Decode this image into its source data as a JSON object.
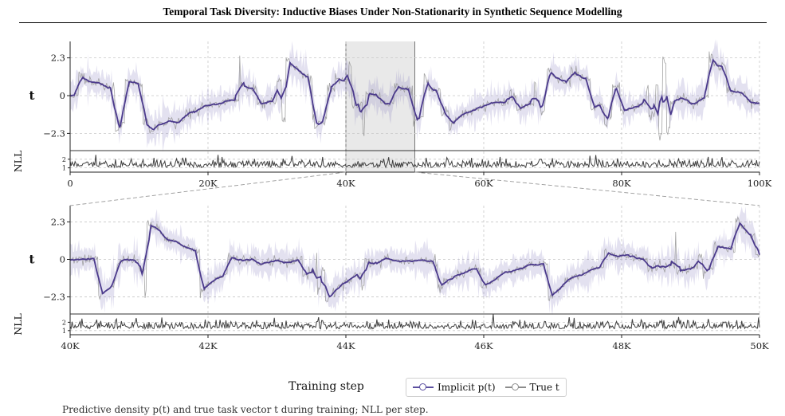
{
  "header": {
    "title": "Temporal Task Diversity: Inductive Biases Under Non-Stationarity in Synthetic Sequence Modelling"
  },
  "colors": {
    "implicit": "#4b3a8c",
    "true": "#9a9a9a",
    "nll": "#404040",
    "highlight": "#e9e9e9"
  },
  "xlabel": "Training step",
  "legend": [
    {
      "label": "Implicit p(t)",
      "color": "#5b4fa0",
      "marker": "circle"
    },
    {
      "label": "True t",
      "color": "#8c8c8c",
      "marker": "circle"
    }
  ],
  "caption": "Predictive density p(t) and true task vector t during training; NLL per step.",
  "chart_data": [
    {
      "type": "line",
      "title": "",
      "ylabel": "t",
      "xlim": [
        0,
        100000
      ],
      "ylim": [
        -3.3,
        3.3
      ],
      "yticks": [
        -2.3,
        0,
        2.3
      ],
      "ytick_labels": [
        "−2.3",
        "0",
        "2.3"
      ],
      "xticks": [
        0,
        20000,
        40000,
        60000,
        80000,
        100000
      ],
      "xtick_labels": [
        "0",
        "20K",
        "40K",
        "60K",
        "80K",
        "100K"
      ],
      "highlight_range": [
        40000,
        50000
      ],
      "grid": true,
      "series": [
        {
          "name": "Implicit p(t)"
        },
        {
          "name": "True t"
        }
      ],
      "nll_panel": {
        "ylabel": "NLL",
        "yticks": [
          1,
          2
        ],
        "ytick_labels": [
          "1",
          "2"
        ],
        "ylim": [
          0.5,
          3.0
        ]
      }
    },
    {
      "type": "line",
      "title": "",
      "ylabel": "t",
      "xlim": [
        40000,
        50000
      ],
      "ylim": [
        -3.3,
        3.3
      ],
      "yticks": [
        -2.3,
        0,
        2.3
      ],
      "ytick_labels": [
        "−2.3",
        "0",
        "2.3"
      ],
      "xticks": [
        40000,
        42000,
        44000,
        46000,
        48000,
        50000
      ],
      "xtick_labels": [
        "40K",
        "42K",
        "44K",
        "46K",
        "48K",
        "50K"
      ],
      "grid": true,
      "series": [
        {
          "name": "Implicit p(t)"
        },
        {
          "name": "True t"
        }
      ],
      "nll_panel": {
        "ylabel": "NLL",
        "yticks": [
          1,
          2
        ],
        "ytick_labels": [
          "1",
          "2"
        ],
        "ylim": [
          0.5,
          3.0
        ]
      }
    }
  ]
}
